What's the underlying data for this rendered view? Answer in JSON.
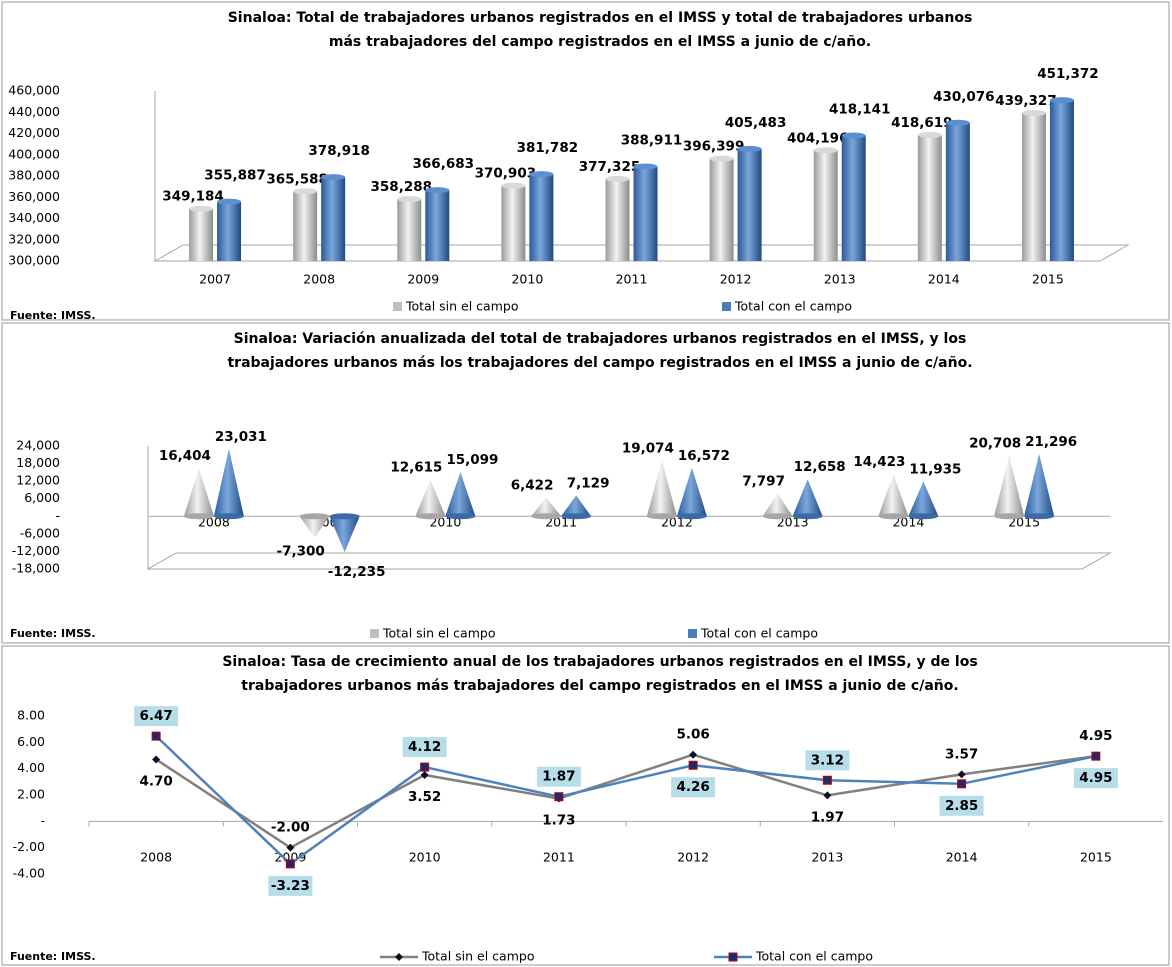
{
  "chart_data": [
    {
      "type": "bar",
      "shape": "cylinder",
      "title": [
        "Sinaloa: Total de trabajadores urbanos registrados en el IMSS y total de trabajadores urbanos",
        "más trabajadores del campo registrados en el IMSS a junio de c/año."
      ],
      "source": "Fuente: IMSS.",
      "categories": [
        "2007",
        "2008",
        "2009",
        "2010",
        "2011",
        "2012",
        "2013",
        "2014",
        "2015"
      ],
      "series": [
        {
          "name": "Total sin el campo",
          "color": "#bfbfbf",
          "label_color": "#000000",
          "values": [
            349184,
            365588,
            358288,
            370903,
            377325,
            396399,
            404196,
            418619,
            439327
          ],
          "value_labels": [
            "349,184",
            "365,588",
            "358,288",
            "370,903",
            "377,325",
            "396,399",
            "404,196",
            "418,619",
            "439,327"
          ]
        },
        {
          "name": "Total con el campo",
          "color": "#4a7ebb",
          "label_color": "#2e5e9a",
          "values": [
            355887,
            378918,
            366683,
            381782,
            388911,
            405483,
            418141,
            430076,
            451372
          ],
          "value_labels": [
            "355,887",
            "378,918",
            "366,683",
            "381,782",
            "388,911",
            "405,483",
            "418,141",
            "430,076",
            "451,372"
          ]
        }
      ],
      "ylim": [
        300000,
        460000
      ],
      "yticks": [
        {
          "value": 300000,
          "label": "300,000"
        },
        {
          "value": 320000,
          "label": "320,000"
        },
        {
          "value": 340000,
          "label": "340,000"
        },
        {
          "value": 360000,
          "label": "360,000"
        },
        {
          "value": 380000,
          "label": "380,000"
        },
        {
          "value": 400000,
          "label": "400,000"
        },
        {
          "value": 420000,
          "label": "420,000"
        },
        {
          "value": 440000,
          "label": "440,000"
        },
        {
          "value": 460000,
          "label": "460,000"
        }
      ],
      "grid": false
    },
    {
      "type": "bar",
      "shape": "cone",
      "title": [
        "Sinaloa: Variación anualizada del total de trabajadores urbanos registrados en el IMSS, y los",
        "trabajadores urbanos más los trabajadores del campo registrados en el IMSS a junio de c/año."
      ],
      "source": "Fuente: IMSS.",
      "categories": [
        "2008",
        "2009",
        "2010",
        "2011",
        "2012",
        "2013",
        "2014",
        "2015"
      ],
      "series": [
        {
          "name": "Total sin el campo",
          "color": "#bfbfbf",
          "label_color": "#000000",
          "values": [
            16404,
            -7300,
            12615,
            6422,
            19074,
            7797,
            14423,
            20708
          ],
          "value_labels": [
            "16,404",
            "-7,300",
            "12,615",
            "6,422",
            "19,074",
            "7,797",
            "14,423",
            "20,708"
          ]
        },
        {
          "name": "Total con el campo",
          "color": "#4a7ebb",
          "label_color": "#2e5e9a",
          "values": [
            23031,
            -12235,
            15099,
            7129,
            16572,
            12658,
            11935,
            21296
          ],
          "value_labels": [
            "23,031",
            "-12,235",
            "15,099",
            "7,129",
            "16,572",
            "12,658",
            "11,935",
            "21,296"
          ]
        }
      ],
      "ylim": [
        -18000,
        24000
      ],
      "yticks": [
        {
          "value": -18000,
          "label": "-18,000"
        },
        {
          "value": -12000,
          "label": "-12,000"
        },
        {
          "value": -6000,
          "label": "-6,000"
        },
        {
          "value": 0,
          "label": "-"
        },
        {
          "value": 6000,
          "label": "6,000"
        },
        {
          "value": 12000,
          "label": "12,000"
        },
        {
          "value": 18000,
          "label": "18,000"
        },
        {
          "value": 24000,
          "label": "24,000"
        }
      ],
      "grid": false
    },
    {
      "type": "line",
      "title": [
        "Sinaloa: Tasa de crecimiento anual de los trabajadores urbanos registrados en el IMSS, y de los",
        "trabajadores urbanos más trabajadores del campo registrados en el IMSS a junio de c/año."
      ],
      "source": "Fuente: IMSS.",
      "categories": [
        "2008",
        "2009",
        "2010",
        "2011",
        "2012",
        "2013",
        "2014",
        "2015"
      ],
      "series": [
        {
          "name": "Total sin el campo",
          "color": "#808080",
          "marker_color": "#0d0d26",
          "label_color": "#000000",
          "values": [
            4.7,
            -2.0,
            3.52,
            1.73,
            5.06,
            1.97,
            3.57,
            4.95
          ],
          "value_labels": [
            "4.70",
            "-2.00",
            "3.52",
            "1.73",
            "5.06",
            "1.97",
            "3.57",
            "4.95"
          ]
        },
        {
          "name": "Total con el campo",
          "color": "#4f81bd",
          "marker_color": "#1f2a6b",
          "label_color": "#000000",
          "label_box": "#b7dde8",
          "values": [
            6.47,
            -3.23,
            4.12,
            1.87,
            4.26,
            3.12,
            2.85,
            4.95
          ],
          "value_labels": [
            "6.47",
            "-3.23",
            "4.12",
            "1.87",
            "4.26",
            "3.12",
            "2.85",
            "4.95"
          ]
        }
      ],
      "ylim": [
        -4,
        8
      ],
      "yticks": [
        {
          "value": -4,
          "label": "-4.00"
        },
        {
          "value": -2,
          "label": "-2.00"
        },
        {
          "value": 0,
          "label": "-"
        },
        {
          "value": 2,
          "label": "2.00"
        },
        {
          "value": 4,
          "label": "4.00"
        },
        {
          "value": 6,
          "label": "6.00"
        },
        {
          "value": 8,
          "label": "8.00"
        }
      ],
      "grid": false
    }
  ]
}
